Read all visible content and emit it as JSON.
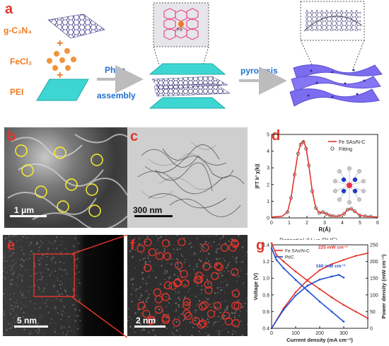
{
  "panels": {
    "a": {
      "letter": "a",
      "labels": {
        "g_c3n4": "g-C₃N₄",
        "fecl2": "FeCl₂",
        "pei": "PEI",
        "phen": "Phen",
        "assembly": "assembly",
        "pyrolysis": "pyrolysis"
      },
      "inset_atoms": {
        "center": "Fe",
        "ligand": "N"
      }
    },
    "b": {
      "letter": "b",
      "scale": "1 μm"
    },
    "c": {
      "letter": "c",
      "scale": "300 nm"
    },
    "d": {
      "letter": "d"
    },
    "e": {
      "letter": "e",
      "scale": "5 nm"
    },
    "f": {
      "letter": "f",
      "scale": "2 nm"
    },
    "g": {
      "letter": "g",
      "cut_title": "Potential (V vs RHE)"
    }
  },
  "chart_data": [
    {
      "panel": "d",
      "type": "line",
      "xlabel": "R(Å)",
      "ylabel": "|FT k³ χ(k)|",
      "xlim": [
        0,
        6
      ],
      "ylim": [
        0,
        5
      ],
      "xticks": [
        "0",
        "1",
        "2",
        "3",
        "4",
        "5",
        "6"
      ],
      "yticks": [
        "0",
        "1",
        "2",
        "3",
        "4",
        "5"
      ],
      "legend_position": "top-right",
      "series": [
        {
          "name": "Fe SAs/N-C",
          "color": "#e3342a",
          "x": [
            0,
            0.6,
            0.9,
            1.1,
            1.3,
            1.5,
            1.65,
            1.8,
            1.95,
            2.1,
            2.3,
            2.5,
            2.7,
            2.9,
            3.1,
            3.3,
            3.5,
            3.8,
            4.1,
            4.3,
            4.5,
            4.7,
            5.0,
            5.3,
            5.6,
            6.0
          ],
          "y": [
            0.05,
            0.1,
            0.35,
            1.2,
            2.6,
            3.9,
            4.45,
            4.6,
            4.2,
            3.2,
            1.6,
            0.6,
            0.3,
            0.35,
            0.25,
            0.15,
            0.1,
            0.1,
            0.25,
            0.5,
            0.55,
            0.4,
            0.15,
            0.1,
            0.08,
            0.05
          ]
        },
        {
          "name": "Fitting",
          "color": "#555555",
          "x": [
            0.9,
            1.1,
            1.3,
            1.5,
            1.65,
            1.8,
            1.95,
            2.1,
            2.3,
            2.5,
            2.7,
            2.9,
            3.1,
            3.3,
            3.5,
            3.8,
            4.1,
            4.3,
            4.5,
            4.7,
            5.0,
            5.3,
            5.6
          ],
          "y": [
            0.35,
            1.2,
            2.6,
            3.85,
            4.4,
            4.55,
            4.15,
            3.15,
            1.6,
            0.6,
            0.3,
            0.35,
            0.25,
            0.15,
            0.1,
            0.1,
            0.25,
            0.5,
            0.55,
            0.4,
            0.15,
            0.1,
            0.08
          ]
        }
      ]
    },
    {
      "panel": "g",
      "type": "line",
      "xlabel": "Current density (mA cm⁻²)",
      "ylabel_left": "Voltage (V)",
      "ylabel_right": "Power density (mW cm⁻²)",
      "xlim": [
        0,
        400
      ],
      "ylim_left": [
        0.4,
        1.4
      ],
      "ylim_right": [
        0,
        250
      ],
      "xticks": [
        "0",
        "100",
        "200",
        "300"
      ],
      "yticks_left": [
        "0.4",
        "0.6",
        "0.8",
        "1.0",
        "1.2",
        "1.4"
      ],
      "yticks_right": [
        "0",
        "50",
        "100",
        "150",
        "200",
        "250"
      ],
      "legend_position": "top-left",
      "annotations": [
        "225 mW cm⁻²",
        "160 mW cm⁻²"
      ],
      "series": [
        {
          "name": "Fe SAs/N-C",
          "kind": "polarization",
          "color": "#e3342a",
          "x": [
            0,
            20,
            50,
            100,
            150,
            200,
            250,
            300,
            350,
            400
          ],
          "y": [
            1.42,
            1.28,
            1.2,
            1.08,
            0.97,
            0.87,
            0.77,
            0.68,
            0.6,
            0.52
          ]
        },
        {
          "name": "Fe SAs/N-C power",
          "kind": "power",
          "color": "#e3342a",
          "x": [
            0,
            50,
            100,
            150,
            200,
            250,
            300,
            350,
            400
          ],
          "y": [
            0,
            60,
            108,
            145,
            174,
            192,
            205,
            217,
            225
          ]
        },
        {
          "name": "Pt/C",
          "kind": "polarization",
          "color": "#1f4fd0",
          "x": [
            0,
            20,
            50,
            100,
            150,
            200,
            250,
            300
          ],
          "y": [
            1.36,
            1.22,
            1.12,
            0.98,
            0.85,
            0.72,
            0.6,
            0.48
          ]
        },
        {
          "name": "Pt/C power",
          "kind": "power",
          "color": "#1f4fd0",
          "x": [
            0,
            50,
            100,
            150,
            200,
            250,
            280,
            300
          ],
          "y": [
            0,
            56,
            98,
            128,
            146,
            155,
            160,
            152
          ]
        }
      ]
    }
  ]
}
